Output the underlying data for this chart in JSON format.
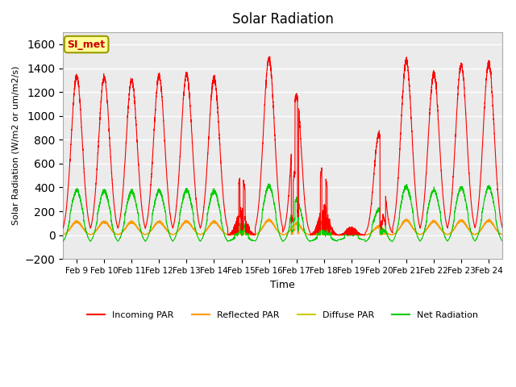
{
  "title": "Solar Radiation",
  "xlabel": "Time",
  "ylabel": "Solar Radiation (W/m2 or um/m2/s)",
  "ylim": [
    -200,
    1700
  ],
  "yticks": [
    -200,
    0,
    200,
    400,
    600,
    800,
    1000,
    1200,
    1400,
    1600
  ],
  "x_tick_labels": [
    "Feb 9",
    "Feb 10",
    "Feb 11",
    "Feb 12",
    "Feb 13",
    "Feb 14",
    "Feb 15",
    "Feb 16",
    "Feb 17",
    "Feb 18",
    "Feb 19",
    "Feb 20",
    "Feb 21",
    "Feb 22",
    "Feb 23",
    "Feb 24"
  ],
  "color_incoming": "#ff0000",
  "color_reflected": "#ff9900",
  "color_diffuse": "#cccc00",
  "color_net": "#00cc00",
  "label_incoming": "Incoming PAR",
  "label_reflected": "Reflected PAR",
  "label_diffuse": "Diffuse PAR",
  "label_net": "Net Radiation",
  "watermark_text": "SI_met",
  "watermark_color": "#cc0000",
  "watermark_bg": "#ffff99",
  "background_color": "#ebebeb",
  "grid_color": "#ffffff",
  "n_days": 16,
  "pts_per_day": 288
}
